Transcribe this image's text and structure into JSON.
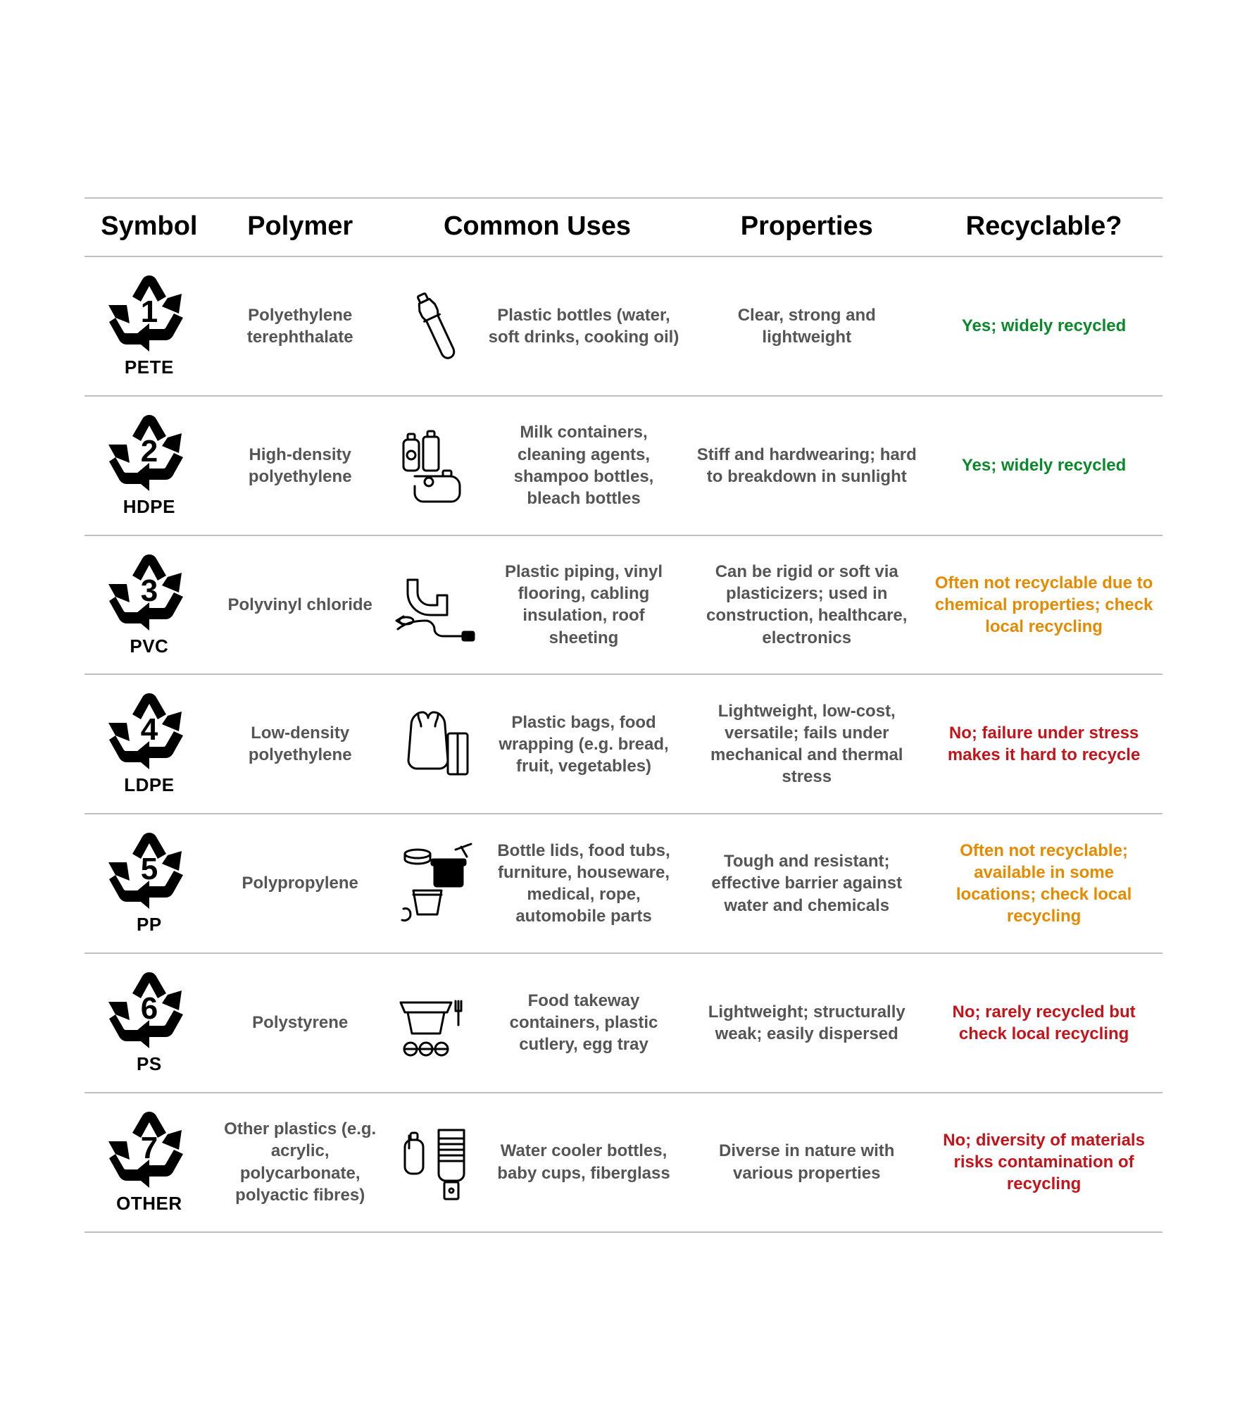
{
  "styling": {
    "background_color": "#ffffff",
    "border_color": "#bfbfbf",
    "header_text_color": "#000000",
    "body_text_color": "#555555",
    "header_fontsize": 38,
    "cell_fontsize": 24,
    "symbol_label_fontsize": 26,
    "recyclable_colors": {
      "yes": "#0a892a",
      "check": "#e68a00",
      "no": "#c4141a"
    },
    "column_widths_pct": {
      "symbol": 12,
      "polymer": 16,
      "uses": 28,
      "properties": 22,
      "recyclable": 22
    }
  },
  "columns": {
    "symbol": "Symbol",
    "polymer": "Polymer",
    "uses": "Common Uses",
    "properties": "Properties",
    "recyclable": "Recyclable?"
  },
  "rows": [
    {
      "code": "1",
      "abbr": "PETE",
      "polymer": "Polyethylene terephthalate",
      "uses": "Plastic bottles (water, soft drinks, cooking oil)",
      "properties": "Clear, strong and lightweight",
      "recyclable": "Yes; widely recycled",
      "recyclable_class": "green",
      "icon": "bottle"
    },
    {
      "code": "2",
      "abbr": "HDPE",
      "polymer": "High-density polyethylene",
      "uses": "Milk containers, cleaning agents, shampoo bottles, bleach bottles",
      "properties": "Stiff and hardwearing; hard to breakdown in sunlight",
      "recyclable": "Yes; widely recycled",
      "recyclable_class": "green",
      "icon": "containers"
    },
    {
      "code": "3",
      "abbr": "PVC",
      "polymer": "Polyvinyl chloride",
      "uses": "Plastic piping, vinyl flooring, cabling insulation, roof sheeting",
      "properties": "Can be rigid or soft via plasticizers; used in construction, healthcare, electronics",
      "recyclable": "Often not recyclable due to chemical properties; check local recycling",
      "recyclable_class": "orange",
      "icon": "pipe"
    },
    {
      "code": "4",
      "abbr": "LDPE",
      "polymer": "Low-density polyethylene",
      "uses": "Plastic bags, food wrapping (e.g. bread, fruit, vegetables)",
      "properties": "Lightweight, low-cost, versatile; fails under mechanical and thermal stress",
      "recyclable": "No; failure under stress makes it hard to recycle",
      "recyclable_class": "red",
      "icon": "bag"
    },
    {
      "code": "5",
      "abbr": "PP",
      "polymer": "Polypropylene",
      "uses": "Bottle lids, food tubs, furniture, houseware, medical, rope, automobile parts",
      "properties": "Tough and resistant; effective barrier against water and chemicals",
      "recyclable": "Often not recyclable; available in some locations; check local recycling",
      "recyclable_class": "orange",
      "icon": "tubs"
    },
    {
      "code": "6",
      "abbr": "PS",
      "polymer": "Polystyrene",
      "uses": "Food takeway containers, plastic cutlery, egg tray",
      "properties": "Lightweight; structurally weak; easily dispersed",
      "recyclable": "No; rarely recycled but check local recycling",
      "recyclable_class": "red",
      "icon": "takeaway"
    },
    {
      "code": "7",
      "abbr": "OTHER",
      "polymer": "Other plastics (e.g. acrylic, polycarbonate, polyactic fibres)",
      "uses": "Water cooler bottles, baby cups, fiberglass",
      "properties": "Diverse in nature with various properties",
      "recyclable": "No; diversity of materials risks contamination of recycling",
      "recyclable_class": "red",
      "icon": "cooler"
    }
  ]
}
